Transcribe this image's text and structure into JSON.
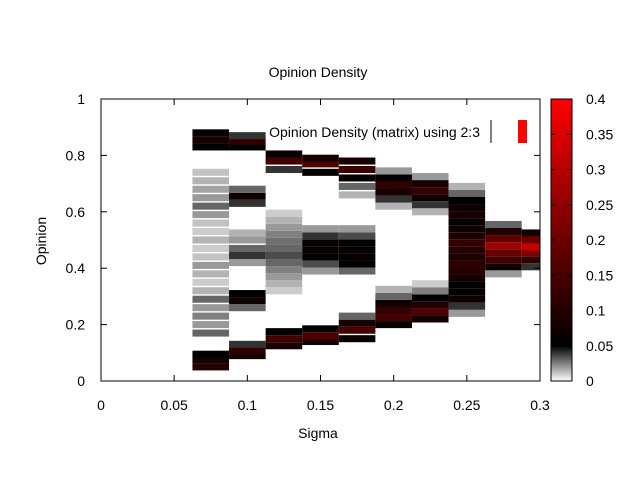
{
  "chart_data": {
    "type": "heatmap",
    "title": "Opinion Density",
    "xlabel": "Sigma",
    "ylabel": "Opinion",
    "xlim": [
      0,
      0.3
    ],
    "ylim": [
      0,
      1
    ],
    "xticks": [
      "0",
      "0.05",
      "0.1",
      "0.15",
      "0.2",
      "0.25",
      "0.3"
    ],
    "yticks": [
      "0",
      "0.2",
      "0.4",
      "0.6",
      "0.8",
      "1"
    ],
    "legend_text": "Opinion Density (matrix) using 2:3",
    "colorbar": {
      "min": 0,
      "max": 0.4,
      "ticks": [
        "0",
        "0.05",
        "0.1",
        "0.15",
        "0.2",
        "0.25",
        "0.3",
        "0.35",
        "0.4"
      ],
      "palette": [
        "#ffffff",
        "#000000",
        "#ff0000"
      ]
    },
    "columns": [
      {
        "sigma": 0.075,
        "cells": [
          {
            "y": 0.05,
            "v": 0.1
          },
          {
            "y": 0.075,
            "v": 0.08
          },
          {
            "y": 0.095,
            "v": 0.05
          },
          {
            "y": 0.17,
            "v": 0.03
          },
          {
            "y": 0.2,
            "v": 0.02
          },
          {
            "y": 0.23,
            "v": 0.025
          },
          {
            "y": 0.26,
            "v": 0.02
          },
          {
            "y": 0.29,
            "v": 0.03
          },
          {
            "y": 0.32,
            "v": 0.015
          },
          {
            "y": 0.35,
            "v": 0.01
          },
          {
            "y": 0.38,
            "v": 0.015
          },
          {
            "y": 0.41,
            "v": 0.02
          },
          {
            "y": 0.44,
            "v": 0.012
          },
          {
            "y": 0.47,
            "v": 0.01
          },
          {
            "y": 0.5,
            "v": 0.015
          },
          {
            "y": 0.53,
            "v": 0.01
          },
          {
            "y": 0.56,
            "v": 0.012
          },
          {
            "y": 0.59,
            "v": 0.02
          },
          {
            "y": 0.62,
            "v": 0.03
          },
          {
            "y": 0.65,
            "v": 0.02
          },
          {
            "y": 0.68,
            "v": 0.018
          },
          {
            "y": 0.71,
            "v": 0.015
          },
          {
            "y": 0.74,
            "v": 0.012
          },
          {
            "y": 0.83,
            "v": 0.05
          },
          {
            "y": 0.855,
            "v": 0.08
          },
          {
            "y": 0.88,
            "v": 0.06
          }
        ]
      },
      {
        "sigma": 0.1,
        "cells": [
          {
            "y": 0.09,
            "v": 0.08
          },
          {
            "y": 0.11,
            "v": 0.12
          },
          {
            "y": 0.13,
            "v": 0.04
          },
          {
            "y": 0.26,
            "v": 0.03
          },
          {
            "y": 0.285,
            "v": 0.07
          },
          {
            "y": 0.31,
            "v": 0.05
          },
          {
            "y": 0.42,
            "v": 0.02
          },
          {
            "y": 0.445,
            "v": 0.04
          },
          {
            "y": 0.47,
            "v": 0.03
          },
          {
            "y": 0.5,
            "v": 0.02
          },
          {
            "y": 0.525,
            "v": 0.015
          },
          {
            "y": 0.63,
            "v": 0.04
          },
          {
            "y": 0.655,
            "v": 0.07
          },
          {
            "y": 0.68,
            "v": 0.03
          },
          {
            "y": 0.83,
            "v": 0.05
          },
          {
            "y": 0.85,
            "v": 0.12
          },
          {
            "y": 0.87,
            "v": 0.04
          }
        ]
      },
      {
        "sigma": 0.125,
        "cells": [
          {
            "y": 0.125,
            "v": 0.08
          },
          {
            "y": 0.15,
            "v": 0.14
          },
          {
            "y": 0.175,
            "v": 0.05
          },
          {
            "y": 0.32,
            "v": 0.01
          },
          {
            "y": 0.345,
            "v": 0.015
          },
          {
            "y": 0.37,
            "v": 0.02
          },
          {
            "y": 0.395,
            "v": 0.025
          },
          {
            "y": 0.42,
            "v": 0.03
          },
          {
            "y": 0.445,
            "v": 0.035
          },
          {
            "y": 0.47,
            "v": 0.03
          },
          {
            "y": 0.495,
            "v": 0.028
          },
          {
            "y": 0.52,
            "v": 0.025
          },
          {
            "y": 0.545,
            "v": 0.02
          },
          {
            "y": 0.57,
            "v": 0.015
          },
          {
            "y": 0.595,
            "v": 0.01
          },
          {
            "y": 0.75,
            "v": 0.04
          },
          {
            "y": 0.78,
            "v": 0.14
          },
          {
            "y": 0.805,
            "v": 0.06
          }
        ]
      },
      {
        "sigma": 0.15,
        "cells": [
          {
            "y": 0.14,
            "v": 0.08
          },
          {
            "y": 0.16,
            "v": 0.16
          },
          {
            "y": 0.185,
            "v": 0.05
          },
          {
            "y": 0.39,
            "v": 0.02
          },
          {
            "y": 0.415,
            "v": 0.035
          },
          {
            "y": 0.44,
            "v": 0.05
          },
          {
            "y": 0.465,
            "v": 0.06
          },
          {
            "y": 0.49,
            "v": 0.06
          },
          {
            "y": 0.515,
            "v": 0.04
          },
          {
            "y": 0.54,
            "v": 0.02
          },
          {
            "y": 0.74,
            "v": 0.05
          },
          {
            "y": 0.77,
            "v": 0.16
          },
          {
            "y": 0.79,
            "v": 0.08
          }
        ]
      },
      {
        "sigma": 0.175,
        "cells": [
          {
            "y": 0.15,
            "v": 0.06
          },
          {
            "y": 0.18,
            "v": 0.15
          },
          {
            "y": 0.205,
            "v": 0.08
          },
          {
            "y": 0.23,
            "v": 0.03
          },
          {
            "y": 0.39,
            "v": 0.03
          },
          {
            "y": 0.415,
            "v": 0.05
          },
          {
            "y": 0.44,
            "v": 0.06
          },
          {
            "y": 0.465,
            "v": 0.06
          },
          {
            "y": 0.49,
            "v": 0.05
          },
          {
            "y": 0.515,
            "v": 0.035
          },
          {
            "y": 0.54,
            "v": 0.02
          },
          {
            "y": 0.66,
            "v": 0.015
          },
          {
            "y": 0.69,
            "v": 0.03
          },
          {
            "y": 0.72,
            "v": 0.06
          },
          {
            "y": 0.75,
            "v": 0.13
          },
          {
            "y": 0.78,
            "v": 0.08
          }
        ]
      },
      {
        "sigma": 0.2,
        "cells": [
          {
            "y": 0.2,
            "v": 0.06
          },
          {
            "y": 0.225,
            "v": 0.14
          },
          {
            "y": 0.25,
            "v": 0.12
          },
          {
            "y": 0.275,
            "v": 0.07
          },
          {
            "y": 0.3,
            "v": 0.03
          },
          {
            "y": 0.325,
            "v": 0.015
          },
          {
            "y": 0.62,
            "v": 0.015
          },
          {
            "y": 0.645,
            "v": 0.04
          },
          {
            "y": 0.67,
            "v": 0.08
          },
          {
            "y": 0.695,
            "v": 0.12
          },
          {
            "y": 0.72,
            "v": 0.06
          },
          {
            "y": 0.745,
            "v": 0.02
          }
        ]
      },
      {
        "sigma": 0.225,
        "cells": [
          {
            "y": 0.22,
            "v": 0.07
          },
          {
            "y": 0.245,
            "v": 0.16
          },
          {
            "y": 0.27,
            "v": 0.1
          },
          {
            "y": 0.295,
            "v": 0.05
          },
          {
            "y": 0.32,
            "v": 0.025
          },
          {
            "y": 0.345,
            "v": 0.01
          },
          {
            "y": 0.6,
            "v": 0.015
          },
          {
            "y": 0.625,
            "v": 0.04
          },
          {
            "y": 0.65,
            "v": 0.07
          },
          {
            "y": 0.675,
            "v": 0.13
          },
          {
            "y": 0.7,
            "v": 0.08
          },
          {
            "y": 0.725,
            "v": 0.02
          }
        ]
      },
      {
        "sigma": 0.25,
        "cells": [
          {
            "y": 0.24,
            "v": 0.02
          },
          {
            "y": 0.265,
            "v": 0.04
          },
          {
            "y": 0.29,
            "v": 0.07
          },
          {
            "y": 0.315,
            "v": 0.06
          },
          {
            "y": 0.34,
            "v": 0.05
          },
          {
            "y": 0.365,
            "v": 0.08
          },
          {
            "y": 0.39,
            "v": 0.1
          },
          {
            "y": 0.415,
            "v": 0.11
          },
          {
            "y": 0.44,
            "v": 0.09
          },
          {
            "y": 0.465,
            "v": 0.1
          },
          {
            "y": 0.49,
            "v": 0.12
          },
          {
            "y": 0.515,
            "v": 0.09
          },
          {
            "y": 0.54,
            "v": 0.07
          },
          {
            "y": 0.565,
            "v": 0.06
          },
          {
            "y": 0.59,
            "v": 0.08
          },
          {
            "y": 0.615,
            "v": 0.07
          },
          {
            "y": 0.64,
            "v": 0.05
          },
          {
            "y": 0.665,
            "v": 0.03
          },
          {
            "y": 0.69,
            "v": 0.015
          }
        ]
      },
      {
        "sigma": 0.275,
        "cells": [
          {
            "y": 0.38,
            "v": 0.02
          },
          {
            "y": 0.405,
            "v": 0.07
          },
          {
            "y": 0.43,
            "v": 0.14
          },
          {
            "y": 0.455,
            "v": 0.19
          },
          {
            "y": 0.48,
            "v": 0.27
          },
          {
            "y": 0.505,
            "v": 0.18
          },
          {
            "y": 0.53,
            "v": 0.09
          },
          {
            "y": 0.555,
            "v": 0.03
          }
        ]
      },
      {
        "sigma": 0.3,
        "cells": [
          {
            "y": 0.405,
            "v": 0.04
          },
          {
            "y": 0.43,
            "v": 0.12
          },
          {
            "y": 0.455,
            "v": 0.22
          },
          {
            "y": 0.475,
            "v": 0.32
          },
          {
            "y": 0.5,
            "v": 0.2
          },
          {
            "y": 0.525,
            "v": 0.08
          }
        ]
      }
    ]
  }
}
